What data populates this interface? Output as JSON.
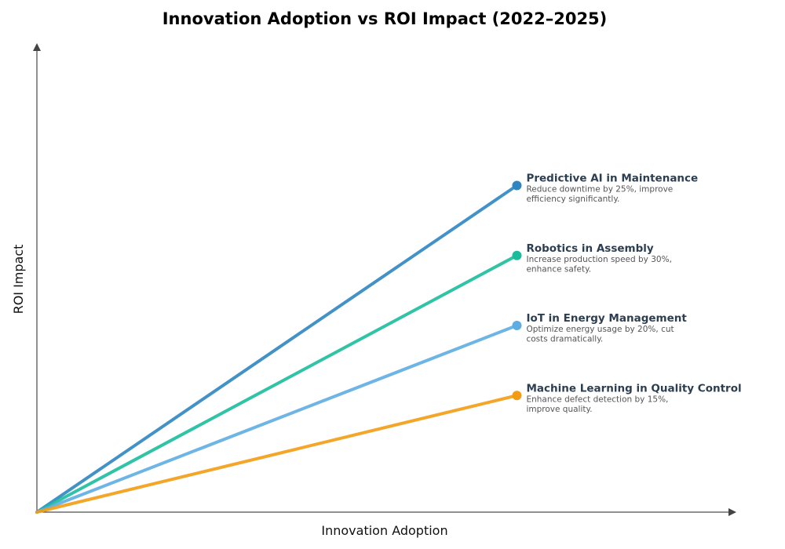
{
  "chart_data": {
    "type": "line",
    "title": "Innovation Adoption vs ROI Impact (2022–2025)",
    "xlabel": "Innovation Adoption",
    "ylabel": "ROI Impact",
    "xlim": [
      0,
      1.02
    ],
    "ylim": [
      0,
      1.0
    ],
    "grid": false,
    "ticks": false,
    "series": [
      {
        "name": "Predictive AI in Maintenance",
        "description": [
          "Reduce downtime by 25%, improve",
          "efficiency significantly."
        ],
        "color": "#2e86c1",
        "x": [
          0,
          0.7
        ],
        "y": [
          0,
          0.7
        ]
      },
      {
        "name": "Robotics in Assembly",
        "description": [
          "Increase production speed by 30%,",
          "enhance safety."
        ],
        "color": "#1abc9c",
        "x": [
          0,
          0.7
        ],
        "y": [
          0,
          0.55
        ]
      },
      {
        "name": "IoT in Energy Management",
        "description": [
          "Optimize energy usage by 20%, cut",
          "costs dramatically."
        ],
        "color": "#5dade2",
        "x": [
          0,
          0.7
        ],
        "y": [
          0,
          0.4
        ]
      },
      {
        "name": "Machine Learning in Quality Control",
        "description": [
          "Enhance defect detection by 15%,",
          "improve quality."
        ],
        "color": "#f39c12",
        "x": [
          0,
          0.7
        ],
        "y": [
          0,
          0.25
        ]
      }
    ]
  }
}
